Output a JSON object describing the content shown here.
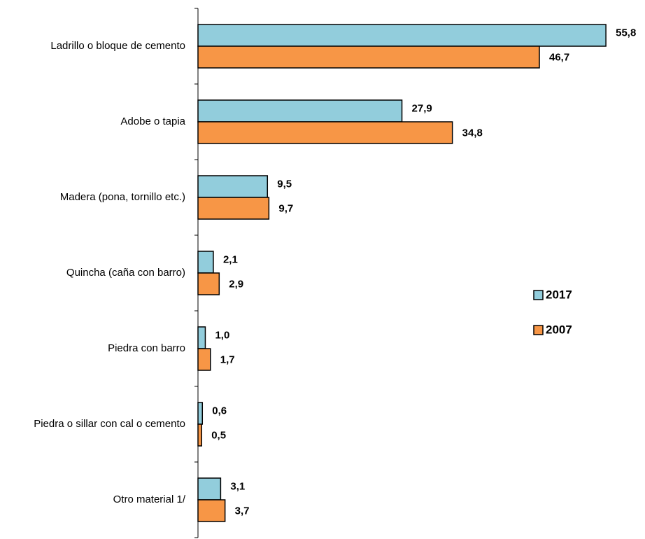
{
  "chart_data": {
    "type": "barh",
    "categories": [
      "Ladrillo o bloque de cemento",
      "Adobe o tapia",
      "Madera (pona, tornillo etc.)",
      "Quincha (caña con barro)",
      "Piedra con barro",
      "Piedra o sillar con cal o cemento",
      "Otro material 1/"
    ],
    "series": [
      {
        "name": "2017",
        "color": "#92cddc",
        "values": [
          55.8,
          27.9,
          9.5,
          2.1,
          1.0,
          0.6,
          3.1
        ],
        "value_labels": [
          "55,8",
          "27,9",
          "9,5",
          "2,1",
          "1,0",
          "0,6",
          "3,1"
        ]
      },
      {
        "name": "2007",
        "color": "#f79646",
        "values": [
          46.7,
          34.8,
          9.7,
          2.9,
          1.7,
          0.5,
          3.7
        ],
        "value_labels": [
          "46,7",
          "34,8",
          "9,7",
          "2,9",
          "1,7",
          "0,5",
          "3,7"
        ]
      }
    ],
    "xlim": [
      0,
      60
    ],
    "legend": "right"
  }
}
